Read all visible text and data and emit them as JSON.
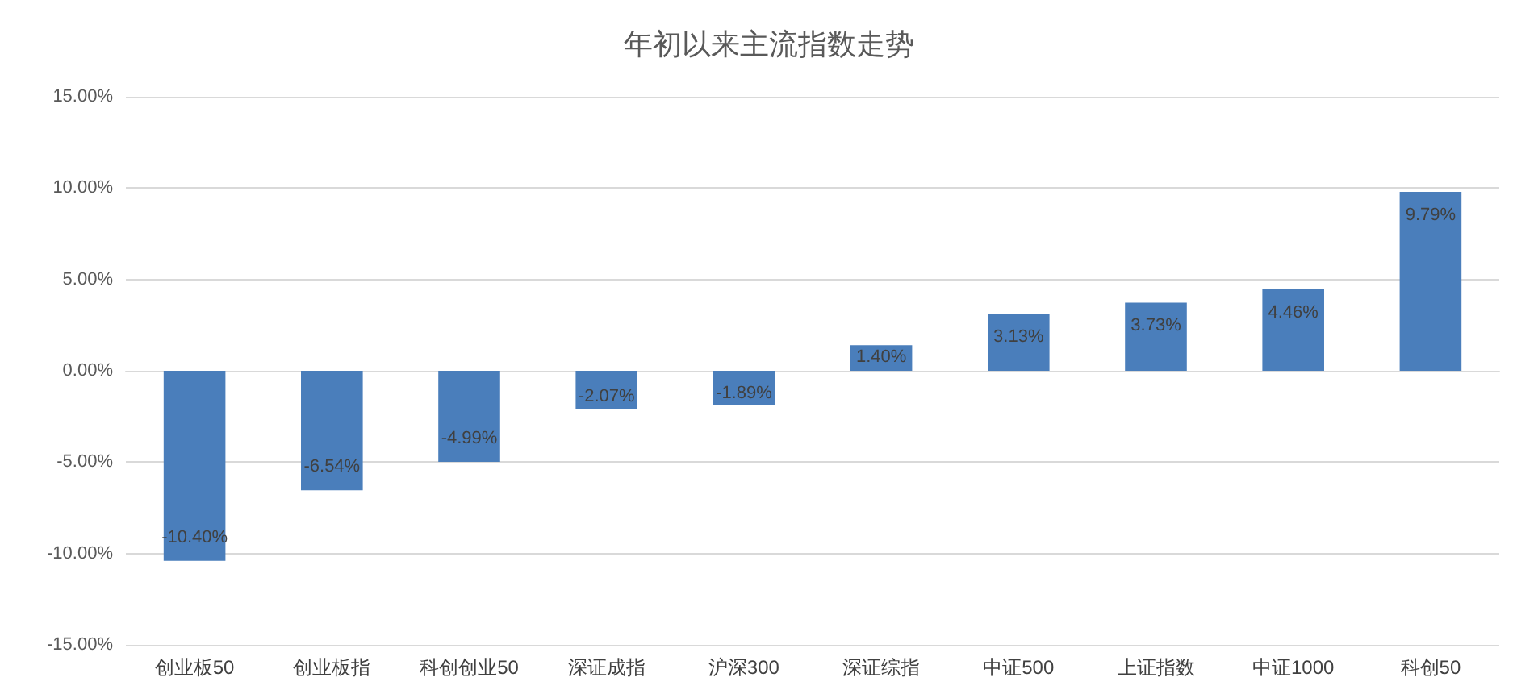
{
  "chart_data": {
    "type": "bar",
    "title": "年初以来主流指数走势",
    "categories": [
      "创业板50",
      "创业板指",
      "科创创业50",
      "深证成指",
      "沪深300",
      "深证综指",
      "中证500",
      "上证指数",
      "中证1000",
      "科创50"
    ],
    "values": [
      -10.4,
      -6.54,
      -4.99,
      -2.07,
      -1.89,
      1.4,
      3.13,
      3.73,
      4.46,
      9.79
    ],
    "value_labels": [
      "-10.40%",
      "-6.54%",
      "-4.99%",
      "-2.07%",
      "-1.89%",
      "1.40%",
      "3.13%",
      "3.73%",
      "4.46%",
      "9.79%"
    ],
    "color": "#4a7ebb",
    "ylim": [
      -15,
      15
    ],
    "yticks": [
      {
        "value": -15,
        "label": "-15.00%"
      },
      {
        "value": -10,
        "label": "-10.00%"
      },
      {
        "value": -5,
        "label": "-5.00%"
      },
      {
        "value": 0,
        "label": "0.00%"
      },
      {
        "value": 5,
        "label": "5.00%"
      },
      {
        "value": 10,
        "label": "10.00%"
      },
      {
        "value": 15,
        "label": "15.00%"
      }
    ],
    "grid": "y"
  }
}
